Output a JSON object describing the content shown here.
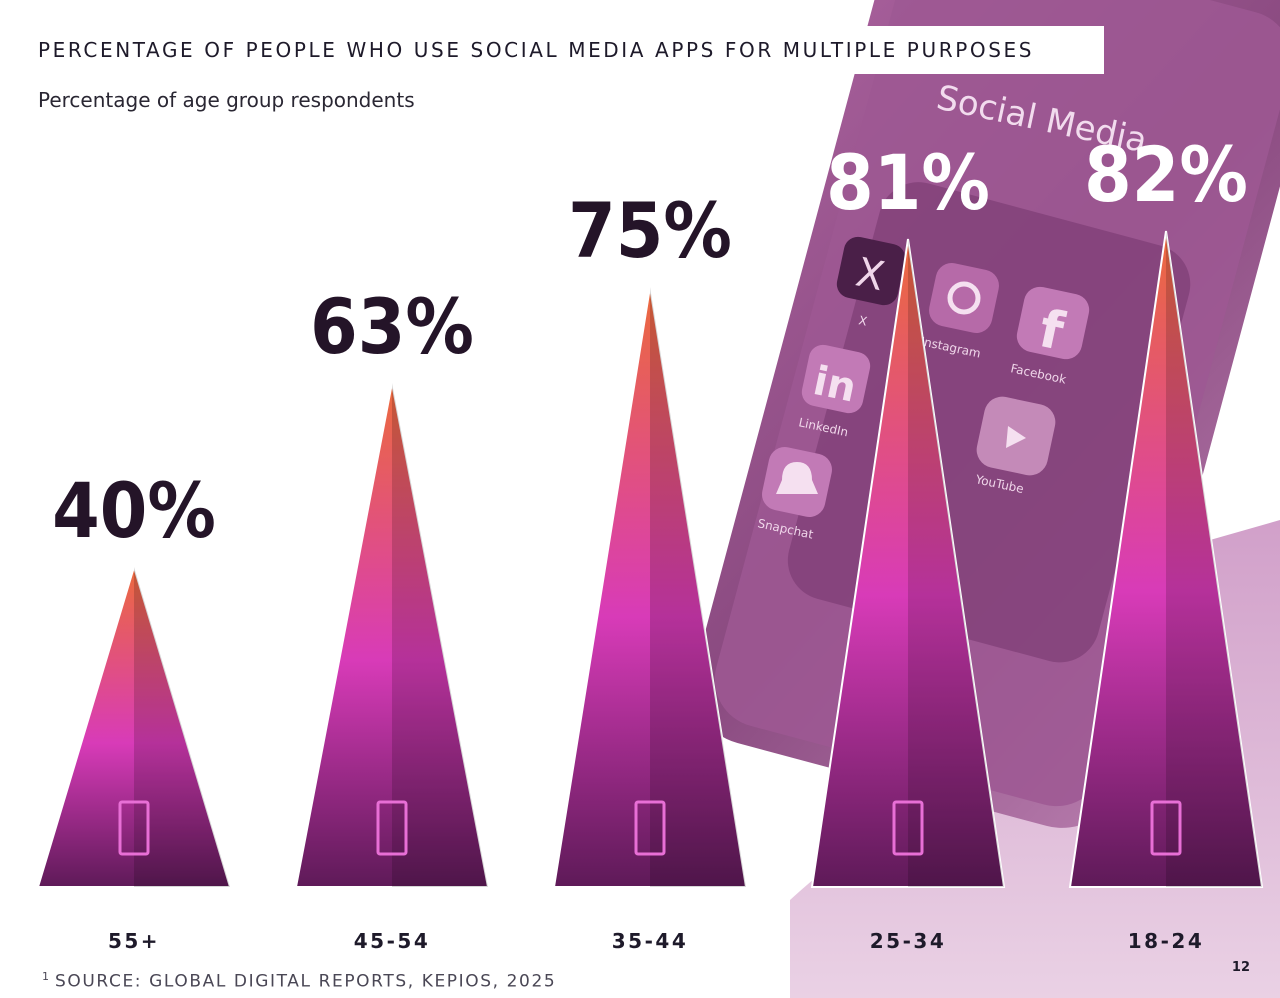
{
  "header": {
    "title": "PERCENTAGE OF PEOPLE WHO USE SOCIAL MEDIA APPS FOR MULTIPLE PURPOSES",
    "subtitle": "Percentage of age group respondents"
  },
  "footer": {
    "source_marker": "1",
    "source": "SOURCE: GLOBAL DIGITAL REPORTS, KEPIOS, 2025",
    "page_number": "12"
  },
  "background": {
    "phone_heading": "Social Media",
    "apps": [
      "X",
      "Instagram",
      "Facebook",
      "LinkedIn",
      "YouTube",
      "Snapchat"
    ]
  },
  "colors": {
    "triangle_top": "#ec6a3c",
    "triangle_mid": "#d83bb8",
    "triangle_bottom": "#5e1a58",
    "dark_label": "#241428",
    "light_label": "#ffffff",
    "phone_tint": "#9a4e8e"
  },
  "chart_data": {
    "type": "bar",
    "title": "PERCENTAGE OF PEOPLE WHO USE SOCIAL MEDIA APPS FOR MULTIPLE PURPOSES",
    "subtitle": "Percentage of age group respondents",
    "categories": [
      "55+",
      "45-54",
      "35-44",
      "25-34",
      "18-24"
    ],
    "values": [
      40,
      63,
      75,
      81,
      82
    ],
    "value_labels": [
      "40%",
      "63%",
      "75%",
      "81%",
      "82%"
    ],
    "unit": "%",
    "ylim": [
      0,
      100
    ],
    "grid": false,
    "legend": "none",
    "mark_shape": "triangle"
  }
}
